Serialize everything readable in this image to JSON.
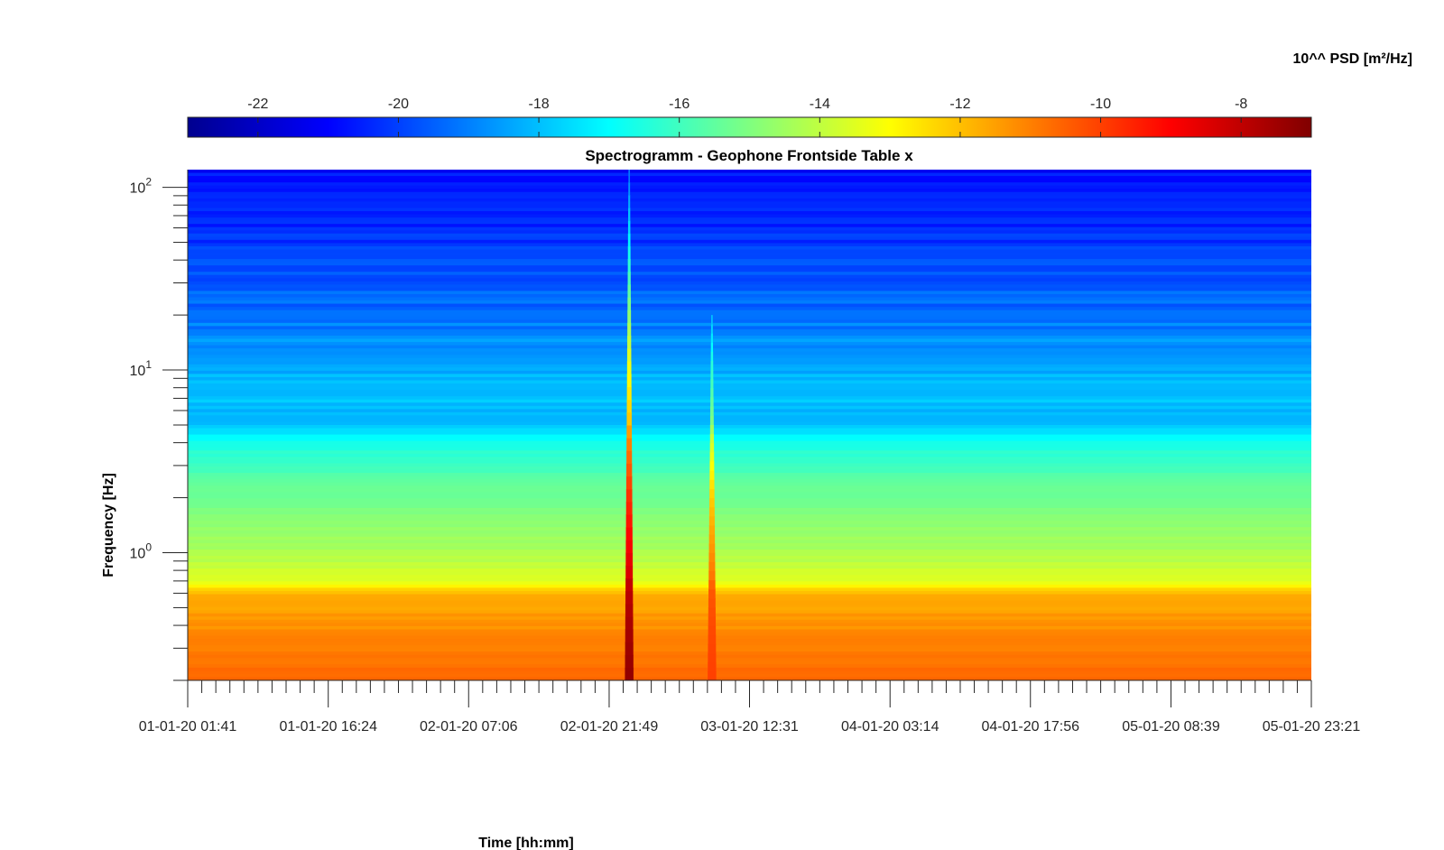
{
  "chart_data": {
    "type": "heatmap",
    "title": "Spectrogramm - Geophone Frontside Table x",
    "xlabel": "Time [hh:mm]",
    "ylabel": "Frequency [Hz]",
    "y_scale": "log",
    "ylim": [
      0.2,
      125
    ],
    "x_range": [
      "01-01-20 01:41",
      "05-01-20 23:21"
    ],
    "x_tick_labels": [
      "01-01-20 01:41",
      "01-01-20 16:24",
      "02-01-20 07:06",
      "02-01-20 21:49",
      "03-01-20 12:31",
      "04-01-20 03:14",
      "04-01-20 17:56",
      "05-01-20 08:39",
      "05-01-20 23:21"
    ],
    "y_ticks": [
      {
        "base": "10",
        "exp": "0"
      },
      {
        "base": "10",
        "exp": "1"
      },
      {
        "base": "10",
        "exp": "2"
      }
    ],
    "colorbar": {
      "label": "10^^ PSD [m²/Hz]",
      "colormap": "jet",
      "range": [
        -23,
        -7
      ],
      "tick_labels": [
        "-22",
        "-20",
        "-18",
        "-16",
        "-14",
        "-12",
        "-10",
        "-8"
      ]
    },
    "spectral_profile": [
      {
        "f": 0.2,
        "psd": -10.6
      },
      {
        "f": 0.3,
        "psd": -11.0
      },
      {
        "f": 0.45,
        "psd": -11.4
      },
      {
        "f": 0.6,
        "psd": -11.8
      },
      {
        "f": 0.7,
        "psd": -13.5
      },
      {
        "f": 1.0,
        "psd": -14.3
      },
      {
        "f": 2.0,
        "psd": -15.2
      },
      {
        "f": 4.0,
        "psd": -16.6
      },
      {
        "f": 5.0,
        "psd": -18.0
      },
      {
        "f": 10,
        "psd": -18.3
      },
      {
        "f": 20,
        "psd": -19.2
      },
      {
        "f": 50,
        "psd": -20.2
      },
      {
        "f": 125,
        "psd": -20.8
      }
    ],
    "events": [
      {
        "time": "02-01-20 23:55",
        "psd": -7.3,
        "f_max": 125
      },
      {
        "time": "03-01-20 08:35",
        "psd": -10.0,
        "f_max": 20
      }
    ]
  }
}
